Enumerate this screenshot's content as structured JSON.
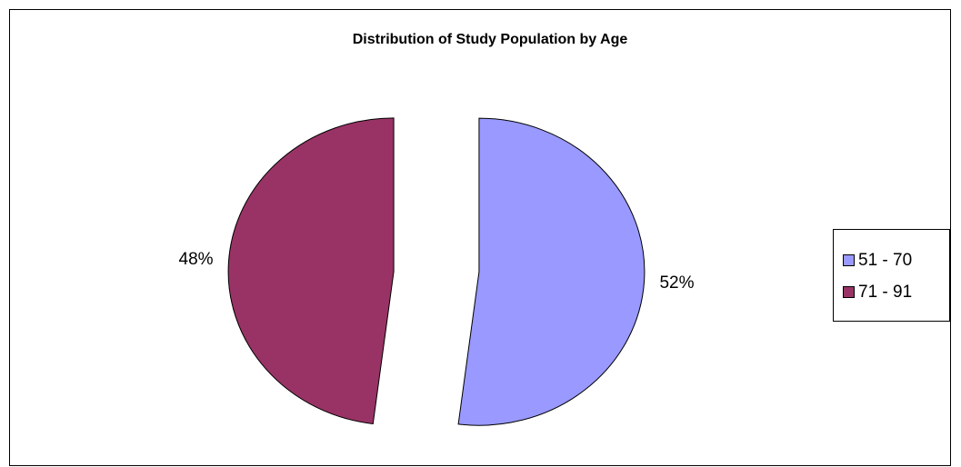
{
  "chart_data": {
    "type": "pie",
    "title": "Distribution of Study Population by Age",
    "categories": [
      "51 - 70",
      "71 - 91"
    ],
    "values": [
      52,
      48
    ],
    "value_labels": [
      "52%",
      "48%"
    ],
    "colors": [
      "#9999ff",
      "#993366"
    ],
    "legend": "right",
    "exploded": true
  }
}
